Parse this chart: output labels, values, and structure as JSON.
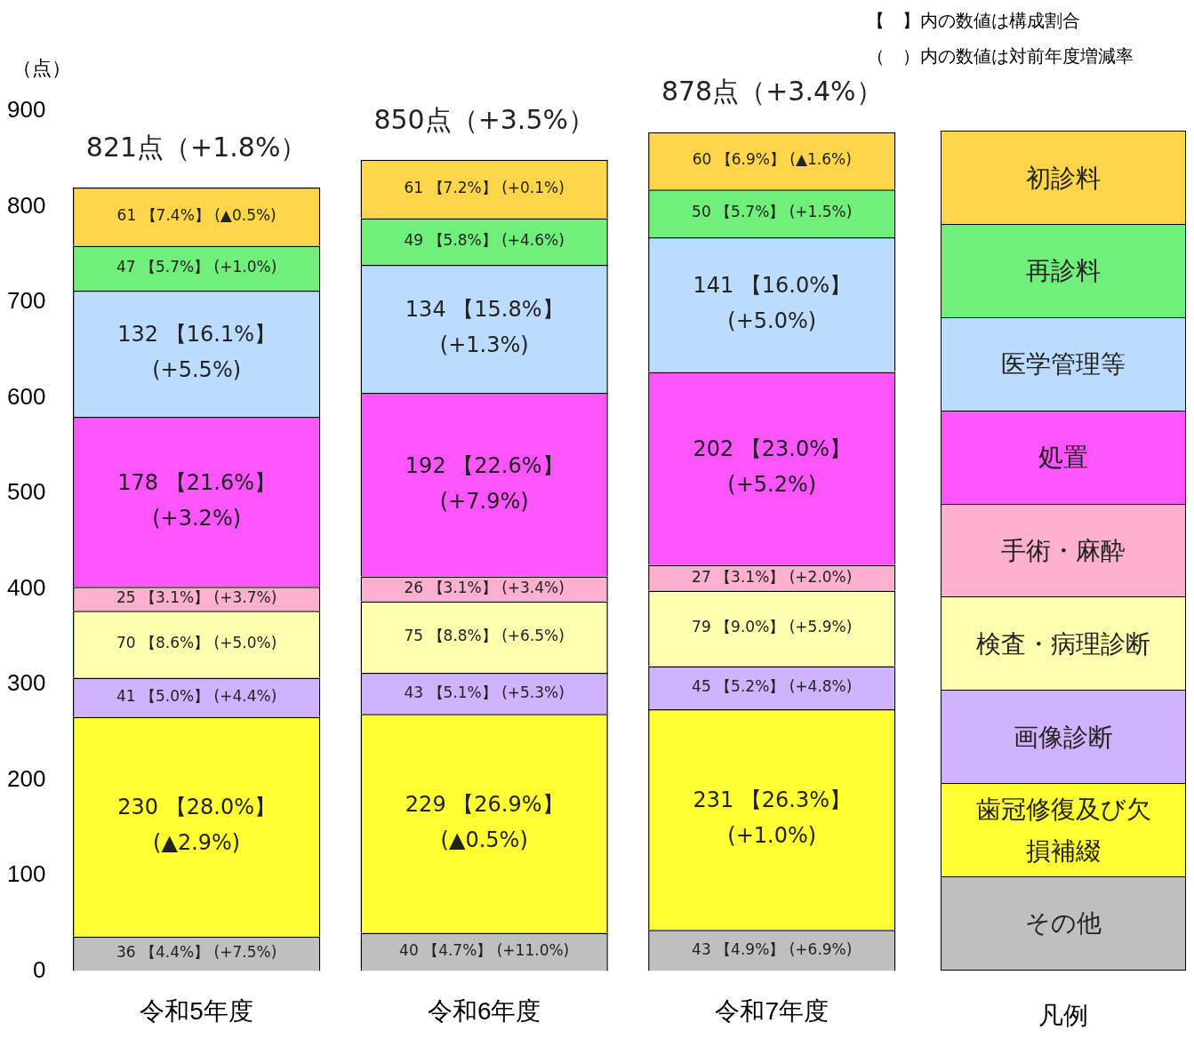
{
  "chart_data": {
    "type": "bar",
    "stacked": true,
    "categories": [
      "令和5年度",
      "令和6年度",
      "令和7年度"
    ],
    "ylabel": "（点）",
    "ylim": [
      0,
      900
    ],
    "yticks": [
      0,
      100,
      200,
      300,
      400,
      500,
      600,
      700,
      800,
      900
    ],
    "grid": false,
    "legend": "right",
    "legend_title": "凡例",
    "annotations": [
      "【　】内の数値は構成割合",
      "（　）内の数値は対前年度増減率"
    ],
    "totals": [
      "821点（+1.8%）",
      "850点（+3.5%）",
      "878点（+3.4%）"
    ],
    "series": [
      {
        "name": "その他",
        "color": "#bfbfbf",
        "values": [
          36,
          40,
          43
        ],
        "value_labels": [
          "36 【4.4%】 (+7.5%)",
          "40 【4.7%】 (+11.0%)",
          "43 【4.9%】 (+6.9%)"
        ]
      },
      {
        "name": "歯冠修復及び欠損補綴",
        "color": "#ffff33",
        "values": [
          230,
          229,
          231
        ],
        "value_labels": [
          "230 【28.0%】\n(▲2.9%)",
          "229 【26.9%】\n(▲0.5%)",
          "231 【26.3%】\n(+1.0%)"
        ]
      },
      {
        "name": "画像診断",
        "color": "#cfb3ff",
        "values": [
          41,
          43,
          45
        ],
        "value_labels": [
          "41 【5.0%】 (+4.4%)",
          "43 【5.1%】 (+5.3%)",
          "45 【5.2%】 (+4.8%)"
        ]
      },
      {
        "name": "検査・病理診断",
        "color": "#ffffb0",
        "values": [
          70,
          75,
          79
        ],
        "value_labels": [
          "70 【8.6%】 (+5.0%)",
          "75 【8.8%】 (+6.5%)",
          "79 【9.0%】 (+5.9%)"
        ]
      },
      {
        "name": "手術・麻酔",
        "color": "#ffb0cc",
        "values": [
          25,
          26,
          27
        ],
        "value_labels": [
          "25 【3.1%】 (+3.7%)",
          "26 【3.1%】 (+3.4%)",
          "27 【3.1%】 (+2.0%)"
        ]
      },
      {
        "name": "処置",
        "color": "#ff55ff",
        "values": [
          178,
          192,
          202
        ],
        "value_labels": [
          "178 【21.6%】\n(+3.2%)",
          "192 【22.6%】\n(+7.9%)",
          "202 【23.0%】\n(+5.2%)"
        ]
      },
      {
        "name": "医学管理等",
        "color": "#bcdcff",
        "values": [
          132,
          134,
          141
        ],
        "value_labels": [
          "132 【16.1%】\n(+5.5%)",
          "134 【15.8%】\n(+1.3%)",
          "141 【16.0%】\n(+5.0%)"
        ]
      },
      {
        "name": "再診料",
        "color": "#70f07a",
        "values": [
          47,
          49,
          50
        ],
        "value_labels": [
          "47 【5.7%】 (+1.0%)",
          "49 【5.8%】 (+4.6%)",
          "50 【5.7%】 (+1.5%)"
        ]
      },
      {
        "name": "初診料",
        "color": "#ffd54a",
        "values": [
          61,
          61,
          60
        ],
        "value_labels": [
          "61 【7.4%】 (▲0.5%)",
          "61 【7.2%】 (+0.1%)",
          "60 【6.9%】 (▲1.6%)"
        ]
      }
    ]
  }
}
